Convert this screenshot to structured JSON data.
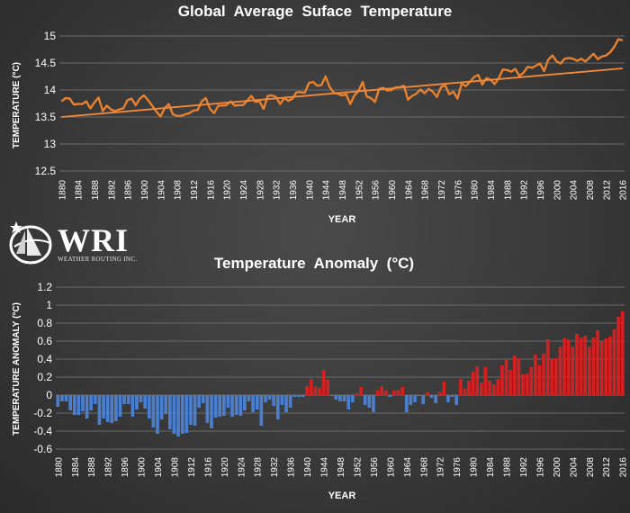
{
  "logo": {
    "text": "WRI",
    "subtext": "WEATHER ROUTING INC."
  },
  "colors": {
    "temperature_line": "#e8812f",
    "trend_line": "#f08a3a",
    "positive_bar": "#d42020",
    "negative_bar": "#4a7fd0",
    "text": "#ffffff",
    "grid": "#6a6a6a"
  },
  "chart_data": [
    {
      "type": "line",
      "title": "Global  Average  Suface  Temperature",
      "xlabel": "YEAR",
      "ylabel": "TEMPERATURE (°C)",
      "ylim": [
        12.5,
        15
      ],
      "yticks": [
        "12.5",
        "13",
        "13.5",
        "14",
        "14.5",
        "15"
      ],
      "xticks": [
        "1880",
        "1884",
        "1888",
        "1892",
        "1896",
        "1900",
        "1904",
        "1908",
        "1912",
        "1916",
        "1920",
        "1924",
        "1928",
        "1932",
        "1936",
        "1940",
        "1944",
        "1948",
        "1952",
        "1956",
        "1960",
        "1964",
        "1968",
        "1972",
        "1976",
        "1980",
        "1984",
        "1988",
        "1992",
        "1996",
        "2000",
        "2004",
        "2008",
        "2012",
        "2016"
      ],
      "grid": true,
      "x_start": 1880,
      "series": [
        {
          "type": "line",
          "values": [
            13.79,
            13.85,
            13.84,
            13.73,
            13.74,
            13.74,
            13.79,
            13.66,
            13.77,
            13.86,
            13.61,
            13.71,
            13.64,
            13.61,
            13.64,
            13.66,
            13.81,
            13.84,
            13.72,
            13.84,
            13.9,
            13.81,
            13.71,
            13.6,
            13.51,
            13.66,
            13.74,
            13.55,
            13.52,
            13.52,
            13.55,
            13.57,
            13.62,
            13.63,
            13.79,
            13.85,
            13.65,
            13.57,
            13.71,
            13.71,
            13.72,
            13.79,
            13.71,
            13.72,
            13.72,
            13.8,
            13.89,
            13.78,
            13.79,
            13.65,
            13.89,
            13.9,
            13.87,
            13.74,
            13.85,
            13.8,
            13.84,
            13.96,
            13.96,
            13.95,
            14.13,
            14.15,
            14.08,
            14.09,
            14.25,
            14.06,
            13.95,
            13.93,
            13.9,
            13.92,
            13.74,
            13.9,
            13.98,
            14.15,
            13.88,
            13.85,
            13.78,
            14.02,
            14.04,
            13.99,
            14,
            14.05,
            14.05,
            14.08,
            13.82,
            13.89,
            13.93,
            14.01,
            13.94,
            14.02,
            13.97,
            13.87,
            14.05,
            14.09,
            13.92,
            13.97,
            13.84,
            14.12,
            14.07,
            14.15,
            14.24,
            14.28,
            14.1,
            14.22,
            14.19,
            14.11,
            14.22,
            14.38,
            14.37,
            14.34,
            14.39,
            14.26,
            14.32,
            14.43,
            14.41,
            14.45,
            14.49,
            14.35,
            14.56,
            14.64,
            14.53,
            14.49,
            14.58,
            14.59,
            14.58,
            14.54,
            14.58,
            14.53,
            14.6,
            14.67,
            14.57,
            14.62,
            14.64,
            14.7,
            14.8,
            14.94,
            14.92
          ]
        },
        {
          "type": "trend",
          "x": [
            1880,
            2016
          ],
          "values": [
            13.5,
            14.4
          ]
        }
      ]
    },
    {
      "type": "bar",
      "title": "Temperature  Anomaly  (°C)",
      "xlabel": "YEAR",
      "ylabel": "TEMPERATURE ANOMALY (°C)",
      "ylim": [
        -0.6,
        1.2
      ],
      "yticks": [
        "-0.6",
        "-0.4",
        "-0.2",
        "0",
        "0.2",
        "0.4",
        "0.6",
        "0.8",
        "1",
        "1.2"
      ],
      "xticks": [
        "1880",
        "1884",
        "1888",
        "1892",
        "1896",
        "1900",
        "1904",
        "1908",
        "1912",
        "1916",
        "1920",
        "1924",
        "1928",
        "1932",
        "1936",
        "1940",
        "1944",
        "1948",
        "1952",
        "1956",
        "1960",
        "1964",
        "1968",
        "1972",
        "1976",
        "1980",
        "1984",
        "1988",
        "1992",
        "1996",
        "2000",
        "2004",
        "2008",
        "2012",
        "2016"
      ],
      "grid": true,
      "x_start": 1880,
      "values": [
        -0.13,
        -0.07,
        -0.07,
        -0.17,
        -0.22,
        -0.22,
        -0.18,
        -0.26,
        -0.17,
        -0.1,
        -0.33,
        -0.26,
        -0.3,
        -0.31,
        -0.29,
        -0.24,
        -0.1,
        -0.1,
        -0.24,
        -0.16,
        -0.08,
        -0.15,
        -0.26,
        -0.36,
        -0.43,
        -0.27,
        -0.21,
        -0.38,
        -0.43,
        -0.46,
        -0.43,
        -0.42,
        -0.33,
        -0.34,
        -0.14,
        -0.09,
        -0.31,
        -0.37,
        -0.25,
        -0.24,
        -0.23,
        -0.14,
        -0.24,
        -0.22,
        -0.23,
        -0.17,
        -0.07,
        -0.19,
        -0.16,
        -0.34,
        -0.08,
        -0.05,
        -0.12,
        -0.27,
        -0.11,
        -0.19,
        -0.14,
        -0.02,
        -0.02,
        -0.02,
        0.1,
        0.18,
        0.1,
        0.08,
        0.28,
        0.17,
        -0.01,
        -0.05,
        -0.07,
        -0.07,
        -0.16,
        -0.08,
        0.02,
        0.09,
        -0.11,
        -0.14,
        -0.19,
        0.05,
        0.1,
        0.05,
        -0.02,
        0.05,
        0.06,
        0.09,
        -0.19,
        -0.11,
        -0.08,
        -0.01,
        -0.1,
        0.03,
        -0.03,
        -0.09,
        0.04,
        0.15,
        -0.08,
        -0.02,
        -0.11,
        0.18,
        0.07,
        0.16,
        0.26,
        0.32,
        0.14,
        0.31,
        0.16,
        0.12,
        0.18,
        0.33,
        0.39,
        0.28,
        0.44,
        0.41,
        0.23,
        0.24,
        0.31,
        0.45,
        0.33,
        0.46,
        0.62,
        0.4,
        0.41,
        0.54,
        0.63,
        0.62,
        0.54,
        0.68,
        0.64,
        0.66,
        0.54,
        0.64,
        0.72,
        0.6,
        0.63,
        0.65,
        0.73,
        0.87,
        0.93
      ]
    }
  ]
}
